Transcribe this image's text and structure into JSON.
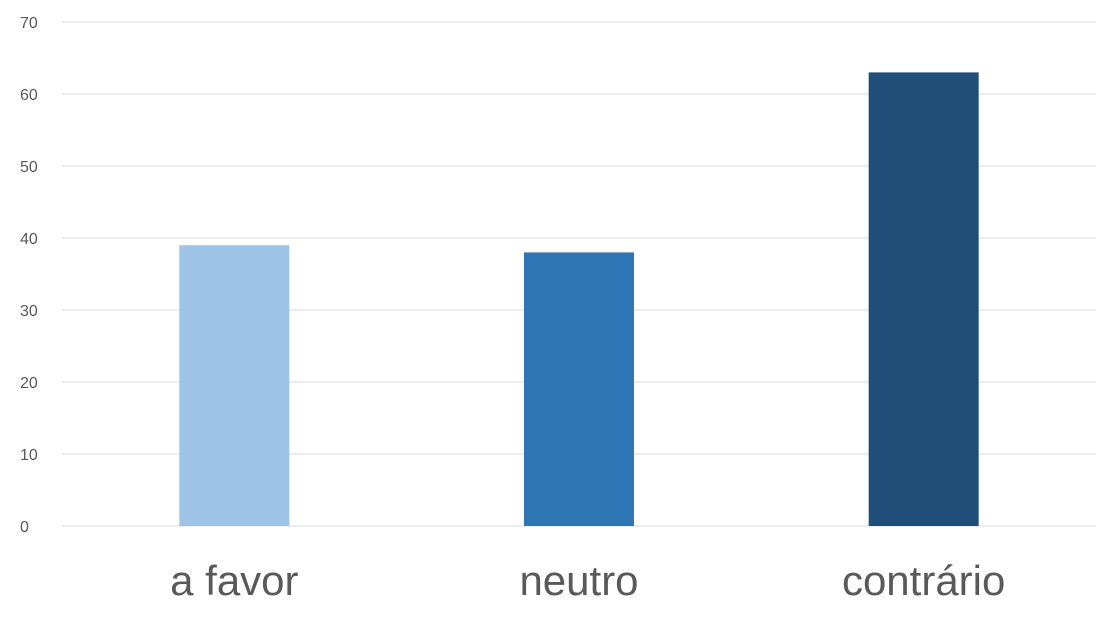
{
  "chart_data": {
    "type": "bar",
    "title": "",
    "xlabel": "",
    "ylabel": "",
    "categories": [
      "a favor",
      "neutro",
      "contrário"
    ],
    "values": [
      39,
      38,
      63
    ],
    "bar_colors": [
      "#9dc3e6",
      "#2e75b6",
      "#1f4e79"
    ],
    "ylim": [
      0,
      70
    ],
    "yticks": [
      0,
      10,
      20,
      30,
      40,
      50,
      60,
      70
    ],
    "grid": true,
    "legend": "none",
    "gridline_color": "#d9d9d9",
    "text_color": "#595959"
  }
}
